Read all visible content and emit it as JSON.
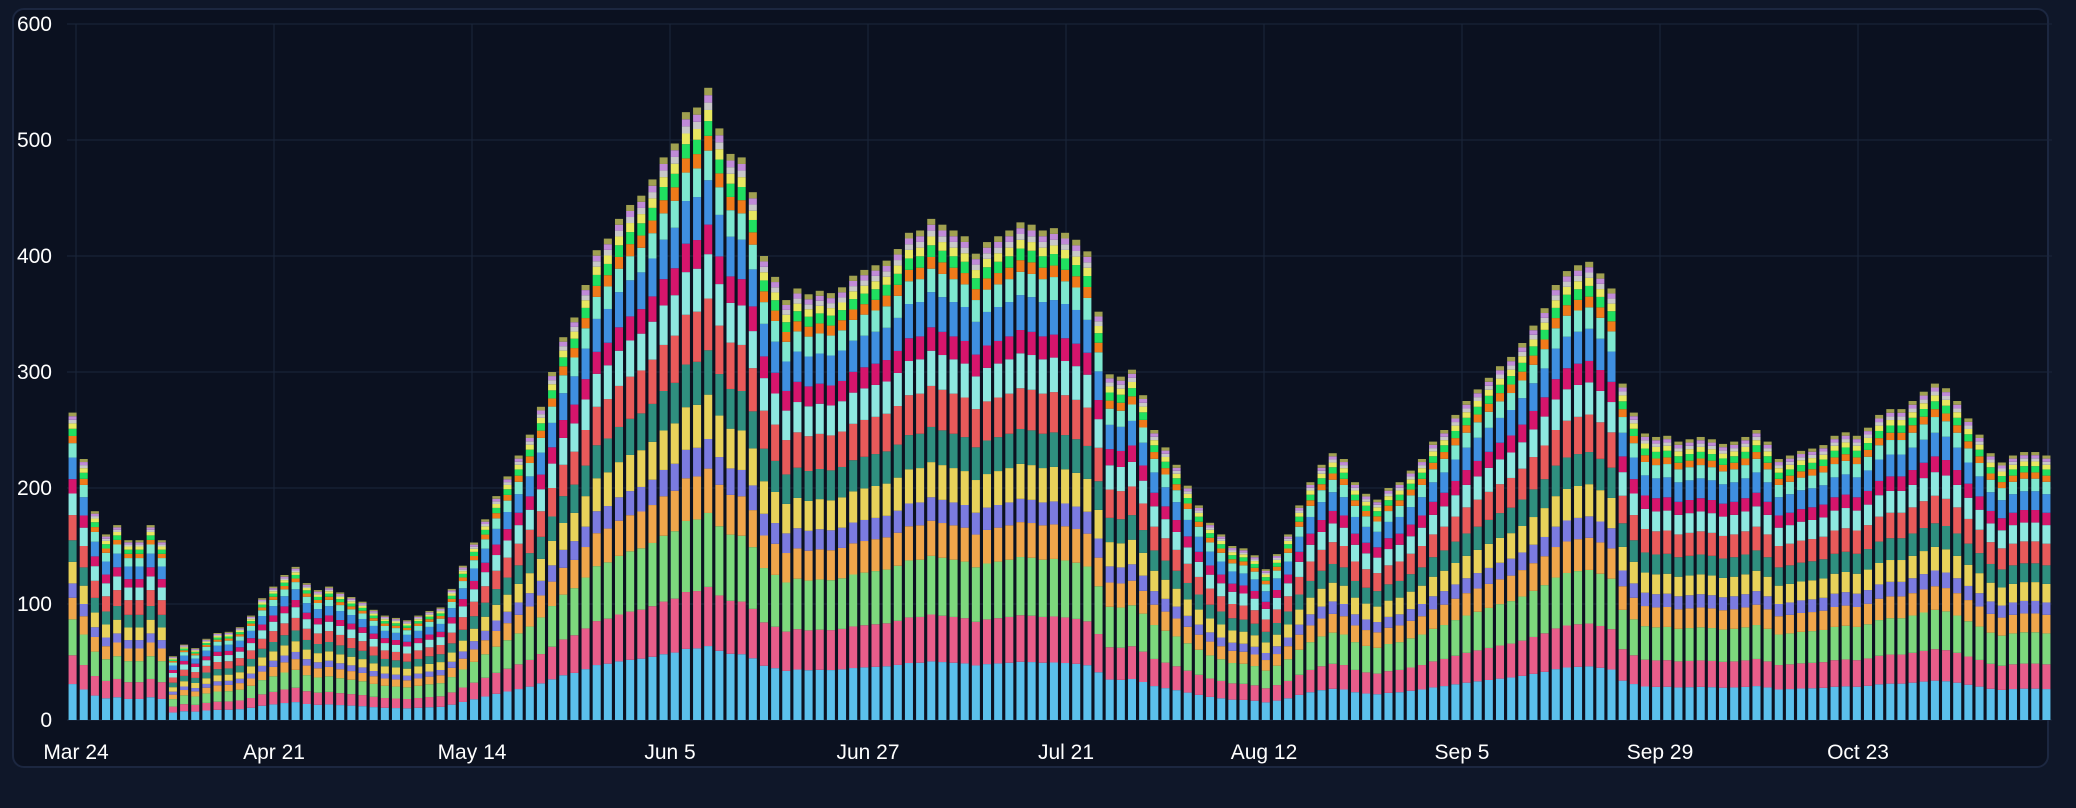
{
  "chart_data": {
    "type": "bar",
    "stacked": true,
    "title": "",
    "xlabel": "",
    "ylabel": "",
    "ylim": [
      0,
      600
    ],
    "y_ticks": [
      0,
      100,
      200,
      300,
      400,
      500,
      600
    ],
    "x_tick_labels": [
      "Mar 24",
      "Apr 21",
      "May 14",
      "Jun 5",
      "Jun 27",
      "Jul 21",
      "Aug 12",
      "Sep 5",
      "Sep 29",
      "Oct 23"
    ],
    "grid": true,
    "legend": "none",
    "background": "#0b1120",
    "gridline_color": "#1b263b",
    "series_colors": [
      "#5bc0eb",
      "#e85d8a",
      "#7dd87d",
      "#f0a64b",
      "#7b7be0",
      "#e8d25a",
      "#2f8f7f",
      "#e85a5a",
      "#8ee8e0",
      "#d6156c",
      "#3f8fe0",
      "#7ee8d0",
      "#f07a1a",
      "#20e060",
      "#e8e860",
      "#c8c8c8",
      "#c08ad8",
      "#a0a050"
    ],
    "totals": [
      265,
      225,
      180,
      160,
      168,
      155,
      155,
      168,
      155,
      55,
      65,
      62,
      70,
      75,
      76,
      80,
      90,
      105,
      115,
      125,
      132,
      118,
      112,
      115,
      110,
      106,
      102,
      95,
      90,
      88,
      86,
      90,
      94,
      97,
      113,
      133,
      153,
      173,
      193,
      210,
      228,
      246,
      270,
      300,
      330,
      347,
      375,
      405,
      415,
      432,
      444,
      452,
      466,
      485,
      497,
      524,
      528,
      545,
      510,
      488,
      485,
      455,
      400,
      382,
      362,
      372,
      367,
      370,
      368,
      373,
      383,
      388,
      392,
      396,
      406,
      420,
      422,
      432,
      427,
      422,
      417,
      402,
      412,
      417,
      422,
      429,
      427,
      422,
      424,
      420,
      414,
      404,
      352,
      298,
      296,
      302,
      280,
      250,
      235,
      220,
      202,
      185,
      170,
      160,
      150,
      148,
      142,
      130,
      143,
      160,
      185,
      205,
      220,
      230,
      225,
      205,
      195,
      190,
      200,
      205,
      215,
      225,
      240,
      250,
      263,
      275,
      285,
      295,
      305,
      313,
      325,
      340,
      355,
      375,
      387,
      392,
      395,
      385,
      372,
      290,
      265,
      247,
      244,
      245,
      240,
      242,
      244,
      242,
      238,
      240,
      244,
      250,
      240,
      225,
      228,
      232,
      234,
      237,
      245,
      248,
      245,
      252,
      263,
      268,
      268,
      275,
      283,
      290,
      286,
      275,
      260,
      246,
      230,
      222,
      228,
      231,
      231,
      228
    ]
  }
}
